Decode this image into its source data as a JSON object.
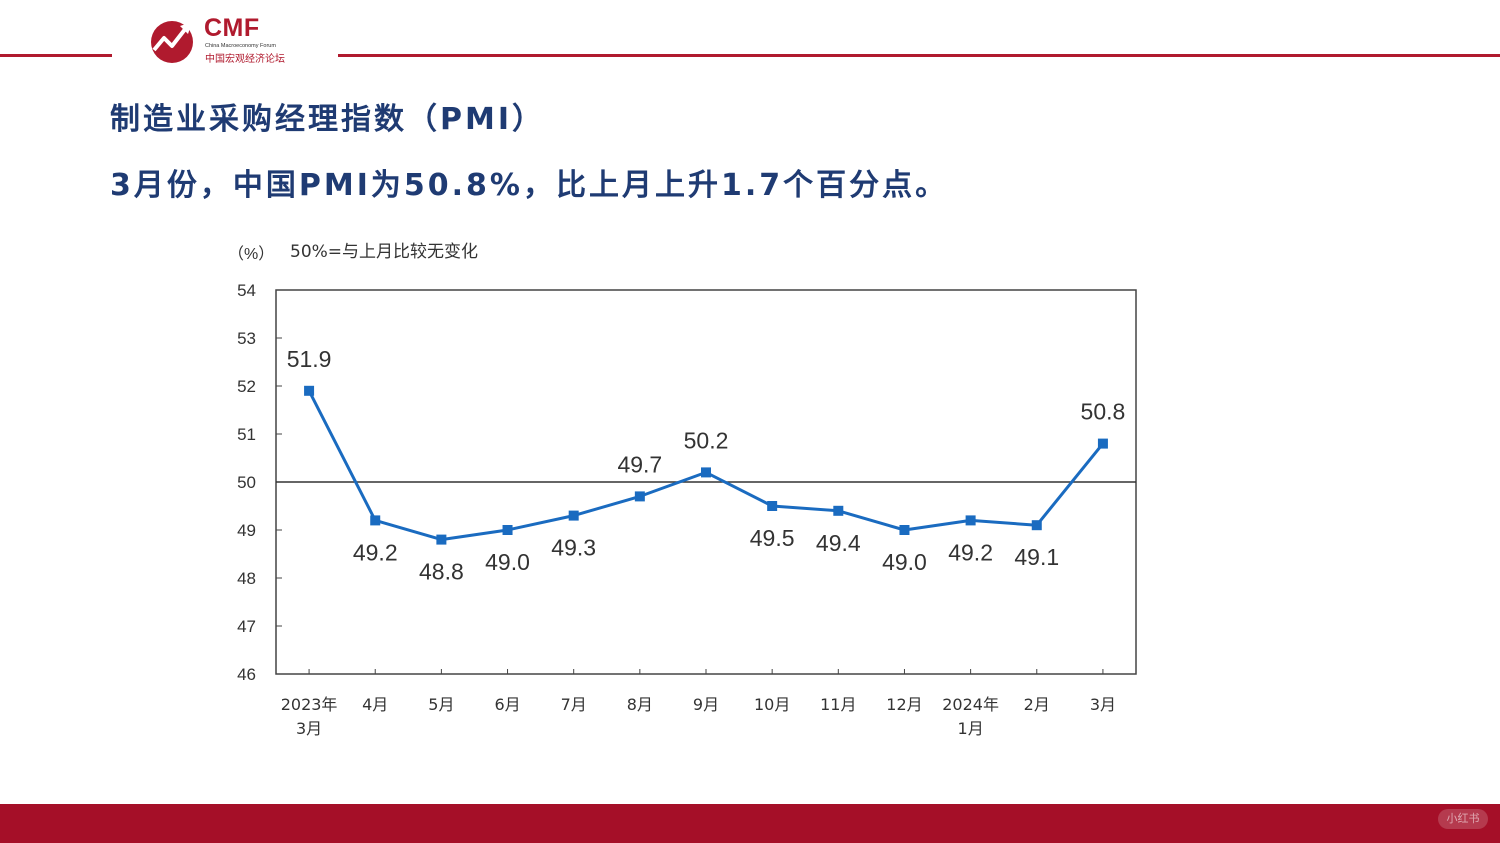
{
  "logo": {
    "name": "CMF",
    "subtitle": "China Macroeconomy Forum",
    "chinese": "中国宏观经济论坛"
  },
  "title": "制造业采购经理指数（PMI）",
  "subtitle": "3月份，中国PMI为50.8%，比上月上升1.7个百分点。",
  "chart_data": {
    "type": "line",
    "unit_label": "（%）",
    "note": "50%=与上月比较无变化",
    "categories": [
      [
        "2023年",
        "3月"
      ],
      [
        "4月"
      ],
      [
        "5月"
      ],
      [
        "6月"
      ],
      [
        "7月"
      ],
      [
        "8月"
      ],
      [
        "9月"
      ],
      [
        "10月"
      ],
      [
        "11月"
      ],
      [
        "12月"
      ],
      [
        "2024年",
        "1月"
      ],
      [
        "2月"
      ],
      [
        "3月"
      ]
    ],
    "values": [
      51.9,
      49.2,
      48.8,
      49.0,
      49.3,
      49.7,
      50.2,
      49.5,
      49.4,
      49.0,
      49.2,
      49.1,
      50.8
    ],
    "data_labels": [
      "51.9",
      "49.2",
      "48.8",
      "49.0",
      "49.3",
      "49.7",
      "50.2",
      "49.5",
      "49.4",
      "49.0",
      "49.2",
      "49.1",
      "50.8"
    ],
    "label_positions": [
      "above",
      "below",
      "below",
      "below",
      "below",
      "above",
      "above",
      "below",
      "below",
      "below",
      "below",
      "below",
      "above"
    ],
    "ylim": [
      46,
      54
    ],
    "yticks": [
      "46",
      "47",
      "48",
      "49",
      "50",
      "51",
      "52",
      "53",
      "54"
    ],
    "reference_line": 50,
    "line_color": "#1a6bc0",
    "grid": false
  },
  "watermark": "小红书",
  "colors": {
    "brand_red": "#b01a2e",
    "heading_blue": "#1f3b73"
  }
}
